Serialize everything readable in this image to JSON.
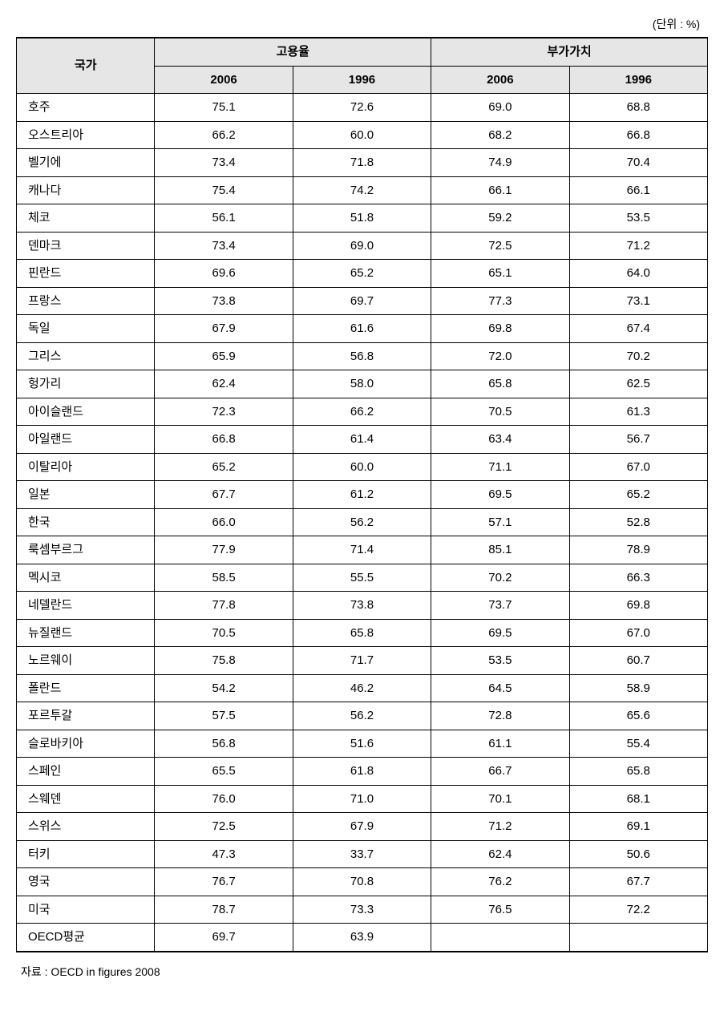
{
  "unit_note": "(단위 : %)",
  "header": {
    "country": "국가",
    "group1": "고용율",
    "group2": "부가가치",
    "y2006": "2006",
    "y1996": "1996"
  },
  "rows": [
    {
      "country": "호주",
      "e2006": "75.1",
      "e1996": "72.6",
      "v2006": "69.0",
      "v1996": "68.8"
    },
    {
      "country": "오스트리아",
      "e2006": "66.2",
      "e1996": "60.0",
      "v2006": "68.2",
      "v1996": "66.8"
    },
    {
      "country": "벨기에",
      "e2006": "73.4",
      "e1996": "71.8",
      "v2006": "74.9",
      "v1996": "70.4"
    },
    {
      "country": "캐나다",
      "e2006": "75.4",
      "e1996": "74.2",
      "v2006": "66.1",
      "v1996": "66.1"
    },
    {
      "country": "체코",
      "e2006": "56.1",
      "e1996": "51.8",
      "v2006": "59.2",
      "v1996": "53.5"
    },
    {
      "country": "덴마크",
      "e2006": "73.4",
      "e1996": "69.0",
      "v2006": "72.5",
      "v1996": "71.2"
    },
    {
      "country": "핀란드",
      "e2006": "69.6",
      "e1996": "65.2",
      "v2006": "65.1",
      "v1996": "64.0"
    },
    {
      "country": "프랑스",
      "e2006": "73.8",
      "e1996": "69.7",
      "v2006": "77.3",
      "v1996": "73.1"
    },
    {
      "country": "독일",
      "e2006": "67.9",
      "e1996": "61.6",
      "v2006": "69.8",
      "v1996": "67.4"
    },
    {
      "country": "그리스",
      "e2006": "65.9",
      "e1996": "56.8",
      "v2006": "72.0",
      "v1996": "70.2"
    },
    {
      "country": "헝가리",
      "e2006": "62.4",
      "e1996": "58.0",
      "v2006": "65.8",
      "v1996": "62.5"
    },
    {
      "country": "아이슬랜드",
      "e2006": "72.3",
      "e1996": "66.2",
      "v2006": "70.5",
      "v1996": "61.3"
    },
    {
      "country": "아일랜드",
      "e2006": "66.8",
      "e1996": "61.4",
      "v2006": "63.4",
      "v1996": "56.7"
    },
    {
      "country": "이탈리아",
      "e2006": "65.2",
      "e1996": "60.0",
      "v2006": "71.1",
      "v1996": "67.0"
    },
    {
      "country": "일본",
      "e2006": "67.7",
      "e1996": "61.2",
      "v2006": "69.5",
      "v1996": "65.2"
    },
    {
      "country": "한국",
      "e2006": "66.0",
      "e1996": "56.2",
      "v2006": "57.1",
      "v1996": "52.8"
    },
    {
      "country": "룩셈부르그",
      "e2006": "77.9",
      "e1996": "71.4",
      "v2006": "85.1",
      "v1996": "78.9"
    },
    {
      "country": "멕시코",
      "e2006": "58.5",
      "e1996": "55.5",
      "v2006": "70.2",
      "v1996": "66.3"
    },
    {
      "country": "네델란드",
      "e2006": "77.8",
      "e1996": "73.8",
      "v2006": "73.7",
      "v1996": "69.8"
    },
    {
      "country": "뉴질랜드",
      "e2006": "70.5",
      "e1996": "65.8",
      "v2006": "69.5",
      "v1996": "67.0"
    },
    {
      "country": "노르웨이",
      "e2006": "75.8",
      "e1996": "71.7",
      "v2006": "53.5",
      "v1996": "60.7"
    },
    {
      "country": "폴란드",
      "e2006": "54.2",
      "e1996": "46.2",
      "v2006": "64.5",
      "v1996": "58.9"
    },
    {
      "country": "포르투갈",
      "e2006": "57.5",
      "e1996": "56.2",
      "v2006": "72.8",
      "v1996": "65.6"
    },
    {
      "country": "슬로바키아",
      "e2006": "56.8",
      "e1996": "51.6",
      "v2006": "61.1",
      "v1996": "55.4"
    },
    {
      "country": "스페인",
      "e2006": "65.5",
      "e1996": "61.8",
      "v2006": "66.7",
      "v1996": "65.8"
    },
    {
      "country": "스웨덴",
      "e2006": "76.0",
      "e1996": "71.0",
      "v2006": "70.1",
      "v1996": "68.1"
    },
    {
      "country": "스위스",
      "e2006": "72.5",
      "e1996": "67.9",
      "v2006": "71.2",
      "v1996": "69.1"
    },
    {
      "country": "터키",
      "e2006": "47.3",
      "e1996": "33.7",
      "v2006": "62.4",
      "v1996": "50.6"
    },
    {
      "country": "영국",
      "e2006": "76.7",
      "e1996": "70.8",
      "v2006": "76.2",
      "v1996": "67.7"
    },
    {
      "country": "미국",
      "e2006": "78.7",
      "e1996": "73.3",
      "v2006": "76.5",
      "v1996": "72.2"
    },
    {
      "country": "OECD평균",
      "e2006": "69.7",
      "e1996": "63.9",
      "v2006": "",
      "v1996": ""
    }
  ],
  "source_note": "자료 : OECD in figures 2008",
  "style": {
    "header_bg": "#e6e6e6",
    "border_color": "#000000",
    "font_size_pt": 15,
    "row_count": 31,
    "col_widths_pct": [
      20,
      20,
      20,
      20,
      20
    ]
  }
}
